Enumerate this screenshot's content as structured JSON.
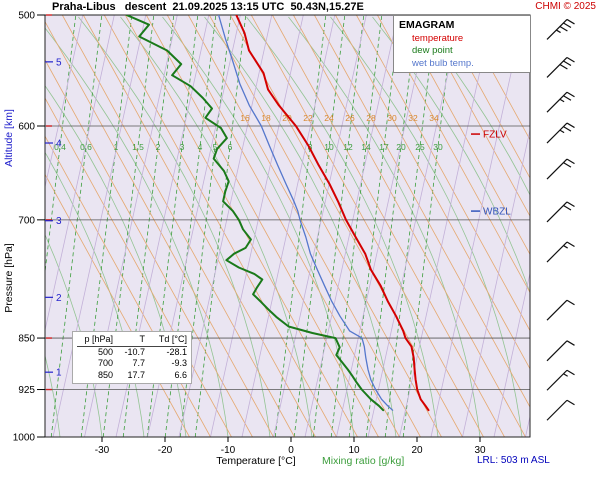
{
  "header": {
    "title": "Praha-Libus   descent  21.09.2025 13:15 UTC  50.43N,15.27E",
    "copyright": "CHMI © 2025"
  },
  "legend": {
    "title": "EMAGRAM",
    "items": [
      {
        "label": "temperature",
        "color": "#d40000"
      },
      {
        "label": "dew point",
        "color": "#1a7a1a"
      },
      {
        "label": "wet bulb temp.",
        "color": "#5577cc"
      }
    ]
  },
  "axes": {
    "pressure_label": "Pressure [hPa]",
    "altitude_label": "Altitude [km]",
    "temp_label": "Temperature [°C]",
    "mixr_label": "Mixing ratio [g/kg]",
    "pressure_ticks": [
      500,
      600,
      700,
      850,
      925,
      1000
    ],
    "altitude_ticks": [
      1,
      2,
      3,
      4,
      5
    ],
    "temp_ticks": [
      -30,
      -20,
      -10,
      0,
      10,
      20,
      30
    ]
  },
  "annotations": {
    "fzlv": {
      "label": "FZLV",
      "pressure": 608
    },
    "wbzl": {
      "label": "WBZL",
      "pressure": 690
    },
    "lrl_label": "LRL: 503 m ASL"
  },
  "table": {
    "headers": [
      "p [hPa]",
      "T",
      "Td [°C]"
    ],
    "rows": [
      [
        "500",
        "-10.7",
        "-28.1"
      ],
      [
        "700",
        "7.7",
        "-9.3"
      ],
      [
        "850",
        "17.7",
        "6.6"
      ]
    ]
  },
  "colors": {
    "plot_bg": "#eae5f2",
    "isotherm": "#c3b1d8",
    "dry_adiabat": "#e5a870",
    "dry_adiabat_label": "#d8882f",
    "moist_adiabat": "#94c494",
    "mixing_ratio": "#3d9e3d",
    "gridline": "#555555",
    "fzlv": "#cc0000",
    "wbzl": "#3355bb",
    "altitude": "#2222cc",
    "lrl": "#0000bb",
    "copyright": "#cc0000",
    "barb": "#111111"
  },
  "chart_data": {
    "type": "line",
    "diagram": "emagram (skew-T) aerological sounding",
    "title": "Praha-Libus descent 21.09.2025 13:15 UTC 50.43N,15.27E",
    "x_axis": {
      "label": "Temperature [°C]",
      "ticks": [
        -30,
        -20,
        -10,
        0,
        10,
        20,
        30
      ],
      "range": [
        -39,
        38
      ]
    },
    "y_axis": {
      "label": "Pressure [hPa]",
      "scale": "log",
      "ticks": [
        500,
        600,
        700,
        850,
        925,
        1000
      ],
      "range": [
        500,
        1000
      ]
    },
    "secondary_y_axis": {
      "label": "Altitude [km]",
      "ticks": [
        1,
        2,
        3,
        4,
        5
      ]
    },
    "dry_adiabat_labels": [
      16,
      18,
      20,
      22,
      24,
      26,
      28,
      30,
      32,
      34
    ],
    "mixing_ratio_labels": [
      0.4,
      0.6,
      1,
      1.5,
      2,
      3,
      4,
      5,
      6,
      8,
      10,
      12,
      14,
      17,
      20,
      25,
      30
    ],
    "series": [
      {
        "name": "temperature",
        "color": "#d40000",
        "width": 2,
        "points": [
          [
            500,
            -10.7
          ],
          [
            515,
            -9.3
          ],
          [
            530,
            -8.5
          ],
          [
            550,
            -6.1
          ],
          [
            565,
            -5.3
          ],
          [
            580,
            -3.5
          ],
          [
            600,
            -0.7
          ],
          [
            620,
            1.4
          ],
          [
            640,
            3.1
          ],
          [
            660,
            4.9
          ],
          [
            680,
            6.4
          ],
          [
            700,
            7.7
          ],
          [
            720,
            9.3
          ],
          [
            740,
            10.9
          ],
          [
            760,
            11.9
          ],
          [
            780,
            13.5
          ],
          [
            800,
            14.7
          ],
          [
            820,
            16.1
          ],
          [
            840,
            17.3
          ],
          [
            850,
            17.7
          ],
          [
            862,
            18.7
          ],
          [
            878,
            19.1
          ],
          [
            895,
            19.3
          ],
          [
            910,
            19.5
          ],
          [
            925,
            19.8
          ],
          [
            940,
            20.4
          ],
          [
            950,
            21.2
          ],
          [
            957,
            21.7
          ]
        ]
      },
      {
        "name": "dew point",
        "color": "#1a7a1a",
        "width": 2,
        "points": [
          [
            500,
            -28.1
          ],
          [
            508,
            -24.5
          ],
          [
            518,
            -26.0
          ],
          [
            530,
            -21.5
          ],
          [
            542,
            -19.2
          ],
          [
            552,
            -20.6
          ],
          [
            562,
            -17.6
          ],
          [
            573,
            -15.6
          ],
          [
            583,
            -14.1
          ],
          [
            592,
            -15.1
          ],
          [
            602,
            -12.6
          ],
          [
            612,
            -11.6
          ],
          [
            623,
            -13.1
          ],
          [
            633,
            -13.6
          ],
          [
            646,
            -11.9
          ],
          [
            657,
            -11.1
          ],
          [
            668,
            -11.6
          ],
          [
            679,
            -11.9
          ],
          [
            690,
            -10.3
          ],
          [
            700,
            -9.3
          ],
          [
            711,
            -8.6
          ],
          [
            723,
            -7.3
          ],
          [
            733,
            -8.1
          ],
          [
            740,
            -9.9
          ],
          [
            748,
            -11.1
          ],
          [
            757,
            -9.1
          ],
          [
            765,
            -6.6
          ],
          [
            772,
            -5.3
          ],
          [
            782,
            -6.1
          ],
          [
            791,
            -6.7
          ],
          [
            801,
            -5.4
          ],
          [
            811,
            -4.2
          ],
          [
            821,
            -2.9
          ],
          [
            834,
            -0.9
          ],
          [
            843,
            2.9
          ],
          [
            850,
            6.6
          ],
          [
            863,
            7.3
          ],
          [
            874,
            6.8
          ],
          [
            885,
            7.8
          ],
          [
            895,
            8.7
          ],
          [
            904,
            9.4
          ],
          [
            915,
            10.2
          ],
          [
            925,
            11.0
          ],
          [
            940,
            12.5
          ],
          [
            950,
            13.8
          ],
          [
            957,
            14.5
          ]
        ]
      },
      {
        "name": "wet bulb temp.",
        "color": "#5577cc",
        "width": 1.3,
        "points": [
          [
            500,
            -13.5
          ],
          [
            520,
            -12.3
          ],
          [
            540,
            -11.0
          ],
          [
            560,
            -9.8
          ],
          [
            580,
            -8.2
          ],
          [
            600,
            -6.2
          ],
          [
            620,
            -4.8
          ],
          [
            640,
            -3.4
          ],
          [
            660,
            -2.0
          ],
          [
            680,
            -0.6
          ],
          [
            690,
            0.0
          ],
          [
            700,
            0.4
          ],
          [
            720,
            1.4
          ],
          [
            740,
            2.2
          ],
          [
            760,
            3.4
          ],
          [
            780,
            4.6
          ],
          [
            800,
            5.8
          ],
          [
            820,
            7.2
          ],
          [
            840,
            8.8
          ],
          [
            850,
            10.8
          ],
          [
            862,
            11.2
          ],
          [
            878,
            11.5
          ],
          [
            895,
            11.9
          ],
          [
            910,
            12.4
          ],
          [
            925,
            13.2
          ],
          [
            940,
            14.2
          ],
          [
            950,
            15.2
          ],
          [
            957,
            16.0
          ]
        ]
      }
    ]
  },
  "wind_barbs": [
    {
      "p": 512,
      "full": 3,
      "half": 1
    },
    {
      "p": 545,
      "full": 3,
      "half": 0
    },
    {
      "p": 577,
      "full": 2,
      "half": 1
    },
    {
      "p": 607,
      "full": 2,
      "half": 1
    },
    {
      "p": 644,
      "full": 2,
      "half": 0
    },
    {
      "p": 691,
      "full": 2,
      "half": 0
    },
    {
      "p": 738,
      "full": 1,
      "half": 1
    },
    {
      "p": 812,
      "full": 1,
      "half": 0
    },
    {
      "p": 868,
      "full": 1,
      "half": 0
    },
    {
      "p": 911,
      "full": 1,
      "half": 1
    },
    {
      "p": 957,
      "full": 1,
      "half": 0
    }
  ]
}
